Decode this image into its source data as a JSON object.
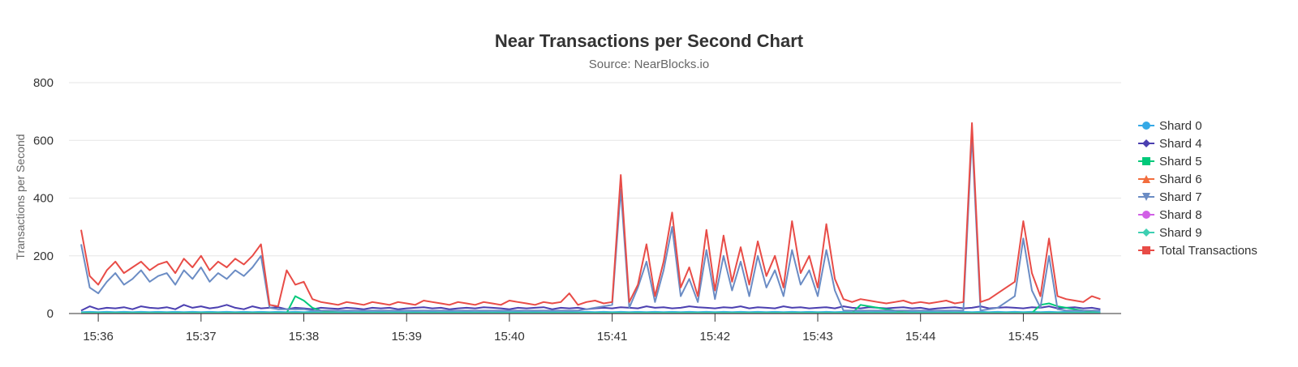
{
  "header": {
    "title": "Near Transactions per Second Chart",
    "subtitle": "Source: NearBlocks.io"
  },
  "colors": {
    "grid": "#e6e6e6",
    "axis_line": "#333333",
    "text": "#333333",
    "axis_title": "#666666"
  },
  "chart_data": {
    "type": "line",
    "title": "Near Transactions per Second Chart",
    "subtitle": "Source: NearBlocks.io",
    "xlabel": "",
    "ylabel": "Transactions per Second",
    "ylim": [
      0,
      800
    ],
    "yticks": [
      "0",
      "200",
      "400",
      "600",
      "800"
    ],
    "xlim": [
      "15:35:50",
      "15:45:50"
    ],
    "xticks": [
      "15:36",
      "15:37",
      "15:38",
      "15:39",
      "15:40",
      "15:41",
      "15:42",
      "15:43",
      "15:44",
      "15:45"
    ],
    "grid": "horizontal",
    "legend_position": "right",
    "x": [
      "15:35:50",
      "15:35:55",
      "15:36:00",
      "15:36:05",
      "15:36:10",
      "15:36:15",
      "15:36:20",
      "15:36:25",
      "15:36:30",
      "15:36:35",
      "15:36:40",
      "15:36:45",
      "15:36:50",
      "15:36:55",
      "15:37:00",
      "15:37:05",
      "15:37:10",
      "15:37:15",
      "15:37:20",
      "15:37:25",
      "15:37:30",
      "15:37:35",
      "15:37:40",
      "15:37:45",
      "15:37:50",
      "15:37:55",
      "15:38:00",
      "15:38:05",
      "15:38:10",
      "15:38:15",
      "15:38:20",
      "15:38:25",
      "15:38:30",
      "15:38:35",
      "15:38:40",
      "15:38:45",
      "15:38:50",
      "15:38:55",
      "15:39:00",
      "15:39:05",
      "15:39:10",
      "15:39:15",
      "15:39:20",
      "15:39:25",
      "15:39:30",
      "15:39:35",
      "15:39:40",
      "15:39:45",
      "15:39:50",
      "15:39:55",
      "15:40:00",
      "15:40:05",
      "15:40:10",
      "15:40:15",
      "15:40:20",
      "15:40:25",
      "15:40:30",
      "15:40:35",
      "15:40:40",
      "15:40:45",
      "15:40:50",
      "15:40:55",
      "15:41:00",
      "15:41:05",
      "15:41:10",
      "15:41:15",
      "15:41:20",
      "15:41:25",
      "15:41:30",
      "15:41:35",
      "15:41:40",
      "15:41:45",
      "15:41:50",
      "15:41:55",
      "15:42:00",
      "15:42:05",
      "15:42:10",
      "15:42:15",
      "15:42:20",
      "15:42:25",
      "15:42:30",
      "15:42:35",
      "15:42:40",
      "15:42:45",
      "15:42:50",
      "15:42:55",
      "15:43:00",
      "15:43:05",
      "15:43:10",
      "15:43:15",
      "15:43:20",
      "15:43:25",
      "15:43:30",
      "15:43:35",
      "15:43:40",
      "15:43:45",
      "15:43:50",
      "15:43:55",
      "15:44:00",
      "15:44:05",
      "15:44:10",
      "15:44:15",
      "15:44:20",
      "15:44:25",
      "15:44:30",
      "15:44:35",
      "15:44:40",
      "15:44:45",
      "15:44:50",
      "15:44:55",
      "15:45:00",
      "15:45:05",
      "15:45:10",
      "15:45:15",
      "15:45:20",
      "15:45:25",
      "15:45:30",
      "15:45:35",
      "15:45:40",
      "15:45:45"
    ],
    "series": [
      {
        "name": "Shard 0",
        "color": "#35a9e6",
        "marker": "circle",
        "values": [
          5,
          6,
          5,
          6,
          5,
          6,
          5,
          6,
          5,
          6,
          5,
          6,
          5,
          6,
          5,
          6,
          5,
          6,
          5,
          6,
          5,
          6,
          5,
          6,
          5,
          6,
          5,
          6,
          5,
          6,
          5,
          6,
          5,
          6,
          5,
          6,
          5,
          6,
          5,
          6,
          5,
          6,
          5,
          6,
          5,
          6,
          5,
          6,
          5,
          6,
          5,
          6,
          5,
          6,
          5,
          6,
          5,
          6,
          5,
          6,
          5,
          6,
          5,
          6,
          5,
          6,
          5,
          6,
          5,
          6,
          5,
          6,
          5,
          6,
          5,
          6,
          5,
          6,
          5,
          6,
          5,
          6,
          5,
          6,
          5,
          6,
          5,
          6,
          5,
          6,
          5,
          6,
          5,
          6,
          5,
          6,
          5,
          6,
          5,
          6,
          5,
          6,
          5,
          6,
          5,
          6,
          5,
          6,
          5,
          6,
          5,
          6,
          5,
          6,
          5,
          6,
          5,
          6,
          5,
          6
        ]
      },
      {
        "name": "Shard 4",
        "color": "#4b3fb0",
        "marker": "diamond",
        "values": [
          10,
          25,
          15,
          20,
          18,
          22,
          15,
          25,
          20,
          18,
          22,
          15,
          30,
          20,
          25,
          18,
          22,
          30,
          20,
          15,
          25,
          18,
          20,
          22,
          15,
          20,
          18,
          15,
          20,
          18,
          16,
          20,
          18,
          15,
          20,
          18,
          20,
          15,
          18,
          20,
          22,
          18,
          20,
          15,
          18,
          20,
          18,
          22,
          20,
          18,
          15,
          20,
          18,
          20,
          22,
          15,
          20,
          18,
          20,
          15,
          18,
          20,
          18,
          22,
          20,
          18,
          25,
          20,
          22,
          18,
          20,
          25,
          22,
          20,
          18,
          22,
          20,
          25,
          18,
          22,
          20,
          18,
          25,
          20,
          22,
          18,
          20,
          22,
          18,
          25,
          20,
          18,
          22,
          20,
          18,
          20,
          22,
          18,
          20,
          15,
          18,
          20,
          22,
          18,
          20,
          25,
          18,
          20,
          22,
          20,
          18,
          22,
          20,
          25,
          18,
          20,
          22,
          18,
          20,
          15
        ]
      },
      {
        "name": "Shard 5",
        "color": "#00c97a",
        "marker": "square",
        "values": [
          2,
          2,
          2,
          2,
          2,
          2,
          2,
          2,
          2,
          2,
          2,
          2,
          2,
          2,
          2,
          2,
          2,
          2,
          2,
          2,
          2,
          2,
          2,
          2,
          2,
          60,
          45,
          20,
          10,
          5,
          3,
          2,
          2,
          2,
          2,
          2,
          2,
          2,
          2,
          2,
          2,
          2,
          2,
          2,
          2,
          2,
          2,
          2,
          2,
          2,
          2,
          2,
          2,
          2,
          2,
          2,
          2,
          2,
          2,
          2,
          2,
          2,
          2,
          2,
          2,
          2,
          2,
          2,
          2,
          2,
          2,
          2,
          2,
          2,
          2,
          2,
          2,
          2,
          2,
          2,
          2,
          2,
          2,
          2,
          2,
          2,
          2,
          2,
          2,
          2,
          2,
          30,
          25,
          20,
          15,
          10,
          5,
          2,
          2,
          2,
          2,
          2,
          2,
          2,
          2,
          2,
          2,
          2,
          2,
          2,
          2,
          2,
          30,
          35,
          25,
          20,
          15,
          10,
          5,
          2
        ]
      },
      {
        "name": "Shard 6",
        "color": "#f26d3d",
        "marker": "triangle",
        "values": [
          1,
          1,
          1,
          1,
          1,
          1,
          1,
          1,
          1,
          1,
          1,
          1,
          1,
          1,
          1,
          1,
          1,
          1,
          1,
          1,
          1,
          1,
          1,
          1,
          1,
          1,
          1,
          1,
          1,
          1,
          1,
          1,
          1,
          1,
          1,
          1,
          1,
          1,
          1,
          1,
          1,
          1,
          1,
          1,
          1,
          1,
          1,
          1,
          1,
          1,
          1,
          1,
          1,
          1,
          1,
          1,
          1,
          1,
          1,
          1,
          1,
          1,
          1,
          1,
          1,
          1,
          1,
          1,
          1,
          1,
          1,
          1,
          1,
          1,
          1,
          1,
          1,
          1,
          1,
          1,
          1,
          1,
          1,
          1,
          1,
          1,
          1,
          1,
          1,
          1,
          1,
          1,
          1,
          1,
          1,
          1,
          1,
          1,
          1,
          1,
          1,
          1,
          1,
          1,
          1,
          1,
          1,
          1,
          1,
          1,
          1,
          1,
          1,
          1,
          1,
          1,
          1,
          1,
          1,
          1
        ]
      },
      {
        "name": "Shard 7",
        "color": "#6b8cc4",
        "marker": "triangle-down",
        "values": [
          240,
          90,
          70,
          110,
          140,
          100,
          120,
          150,
          110,
          130,
          140,
          100,
          150,
          120,
          160,
          110,
          140,
          120,
          150,
          130,
          160,
          200,
          20,
          15,
          15,
          15,
          15,
          10,
          10,
          10,
          10,
          10,
          10,
          10,
          10,
          10,
          10,
          10,
          10,
          10,
          10,
          10,
          10,
          10,
          10,
          10,
          10,
          10,
          10,
          10,
          10,
          10,
          10,
          10,
          10,
          10,
          10,
          10,
          10,
          15,
          20,
          25,
          30,
          430,
          20,
          90,
          180,
          40,
          150,
          300,
          60,
          120,
          40,
          220,
          50,
          200,
          80,
          180,
          60,
          200,
          90,
          150,
          60,
          220,
          100,
          150,
          60,
          220,
          80,
          10,
          10,
          10,
          10,
          10,
          10,
          10,
          10,
          10,
          10,
          10,
          10,
          10,
          10,
          10,
          620,
          10,
          15,
          20,
          40,
          60,
          260,
          80,
          20,
          200,
          15,
          10,
          10,
          10,
          10,
          10
        ]
      },
      {
        "name": "Shard 8",
        "color": "#d160e6",
        "marker": "circle",
        "values": [
          1,
          1,
          1,
          1,
          1,
          1,
          1,
          1,
          1,
          1,
          1,
          1,
          1,
          1,
          1,
          1,
          1,
          1,
          1,
          1,
          1,
          1,
          1,
          1,
          1,
          1,
          1,
          1,
          1,
          1,
          1,
          1,
          1,
          1,
          1,
          1,
          1,
          1,
          1,
          1,
          1,
          1,
          1,
          1,
          1,
          1,
          1,
          1,
          1,
          1,
          1,
          1,
          1,
          1,
          1,
          1,
          1,
          1,
          1,
          1,
          1,
          1,
          1,
          1,
          1,
          1,
          1,
          1,
          1,
          1,
          1,
          1,
          1,
          1,
          1,
          1,
          1,
          1,
          1,
          1,
          1,
          1,
          1,
          1,
          1,
          1,
          1,
          1,
          1,
          1,
          1,
          1,
          1,
          1,
          1,
          1,
          1,
          1,
          1,
          1,
          1,
          1,
          1,
          1,
          1,
          1,
          1,
          1,
          1,
          1,
          1,
          1,
          1,
          1,
          1,
          1,
          1,
          1,
          1,
          1
        ]
      },
      {
        "name": "Shard 9",
        "color": "#3dcfb2",
        "marker": "diamond",
        "values": [
          3,
          3,
          3,
          3,
          3,
          3,
          3,
          3,
          3,
          3,
          3,
          3,
          3,
          3,
          3,
          3,
          3,
          3,
          3,
          3,
          3,
          3,
          3,
          3,
          3,
          3,
          3,
          3,
          3,
          3,
          3,
          3,
          3,
          3,
          3,
          3,
          3,
          3,
          3,
          3,
          3,
          3,
          3,
          3,
          3,
          3,
          3,
          3,
          3,
          3,
          3,
          3,
          3,
          3,
          3,
          3,
          3,
          3,
          3,
          3,
          3,
          3,
          3,
          3,
          3,
          3,
          3,
          3,
          3,
          3,
          3,
          3,
          3,
          3,
          3,
          3,
          3,
          3,
          3,
          3,
          3,
          3,
          3,
          3,
          3,
          3,
          3,
          3,
          3,
          3,
          3,
          3,
          3,
          3,
          3,
          3,
          3,
          3,
          3,
          3,
          3,
          3,
          3,
          3,
          3,
          3,
          3,
          3,
          3,
          3,
          3,
          3,
          3,
          3,
          3,
          3,
          3,
          3,
          3,
          3
        ]
      },
      {
        "name": "Total Transactions",
        "color": "#e84c47",
        "marker": "square",
        "values": [
          290,
          130,
          100,
          150,
          180,
          140,
          160,
          180,
          150,
          170,
          180,
          140,
          190,
          160,
          200,
          150,
          180,
          160,
          190,
          170,
          200,
          240,
          30,
          25,
          150,
          100,
          110,
          50,
          40,
          35,
          30,
          40,
          35,
          30,
          40,
          35,
          30,
          40,
          35,
          30,
          45,
          40,
          35,
          30,
          40,
          35,
          30,
          40,
          35,
          30,
          45,
          40,
          35,
          30,
          40,
          35,
          40,
          70,
          30,
          40,
          45,
          35,
          40,
          480,
          40,
          100,
          240,
          60,
          180,
          350,
          90,
          160,
          60,
          290,
          80,
          270,
          110,
          230,
          100,
          250,
          130,
          200,
          90,
          320,
          140,
          200,
          90,
          310,
          120,
          50,
          40,
          50,
          45,
          40,
          35,
          40,
          45,
          35,
          40,
          35,
          40,
          45,
          35,
          40,
          660,
          40,
          50,
          70,
          90,
          110,
          320,
          140,
          60,
          260,
          60,
          50,
          45,
          40,
          60,
          50
        ]
      }
    ]
  }
}
